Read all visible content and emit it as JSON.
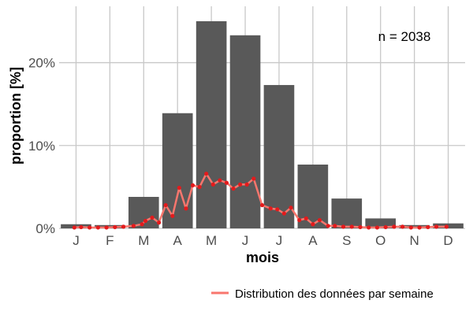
{
  "chart_data": {
    "type": "bar",
    "xlabel": "mois",
    "ylabel": "proportion [%]",
    "categories": [
      "J",
      "F",
      "M",
      "A",
      "M",
      "J",
      "J",
      "A",
      "S",
      "O",
      "N",
      "D"
    ],
    "values": [
      0.5,
      0.4,
      3.8,
      13.9,
      25.0,
      23.3,
      17.3,
      7.7,
      3.6,
      1.2,
      0.4,
      0.6
    ],
    "ylim": [
      0,
      26.8
    ],
    "y_ticks": [
      0,
      10,
      20
    ],
    "y_tick_labels": [
      "0%",
      "10%",
      "20%"
    ],
    "grid": true,
    "bar_color": "#595959",
    "annotation": "n = 2038",
    "weekly_series": {
      "name": "Distribution des données par semaine",
      "color": "#f8766d",
      "point_color": "#e41a1c",
      "x_month_position": [
        0.95,
        1.15,
        1.4,
        1.65,
        1.9,
        2.15,
        2.4,
        2.7,
        2.95,
        3.05,
        3.25,
        3.45,
        3.65,
        3.85,
        4.05,
        4.25,
        4.45,
        4.65,
        4.85,
        5.05,
        5.25,
        5.45,
        5.65,
        5.85,
        6.05,
        6.25,
        6.5,
        6.75,
        6.95,
        7.15,
        7.35,
        7.6,
        7.8,
        8.0,
        8.2,
        8.45,
        8.65,
        8.9,
        9.15,
        9.4,
        9.65,
        9.9,
        10.15,
        10.4,
        10.65,
        10.9,
        11.15,
        11.4,
        11.65,
        11.95
      ],
      "values": [
        0.1,
        0.15,
        0.1,
        0.1,
        0.1,
        0.15,
        0.2,
        0.3,
        0.5,
        0.9,
        1.3,
        0.7,
        2.8,
        1.5,
        4.9,
        2.4,
        5.2,
        5.0,
        6.6,
        5.3,
        5.8,
        5.5,
        4.8,
        5.3,
        5.3,
        6.0,
        2.8,
        2.4,
        2.3,
        1.8,
        2.5,
        1.0,
        1.2,
        0.5,
        1.0,
        0.3,
        0.3,
        0.2,
        0.2,
        0.15,
        0.1,
        0.1,
        0.15,
        0.2,
        0.2,
        0.1,
        0.1,
        0.15,
        0.2,
        0.2
      ]
    }
  }
}
